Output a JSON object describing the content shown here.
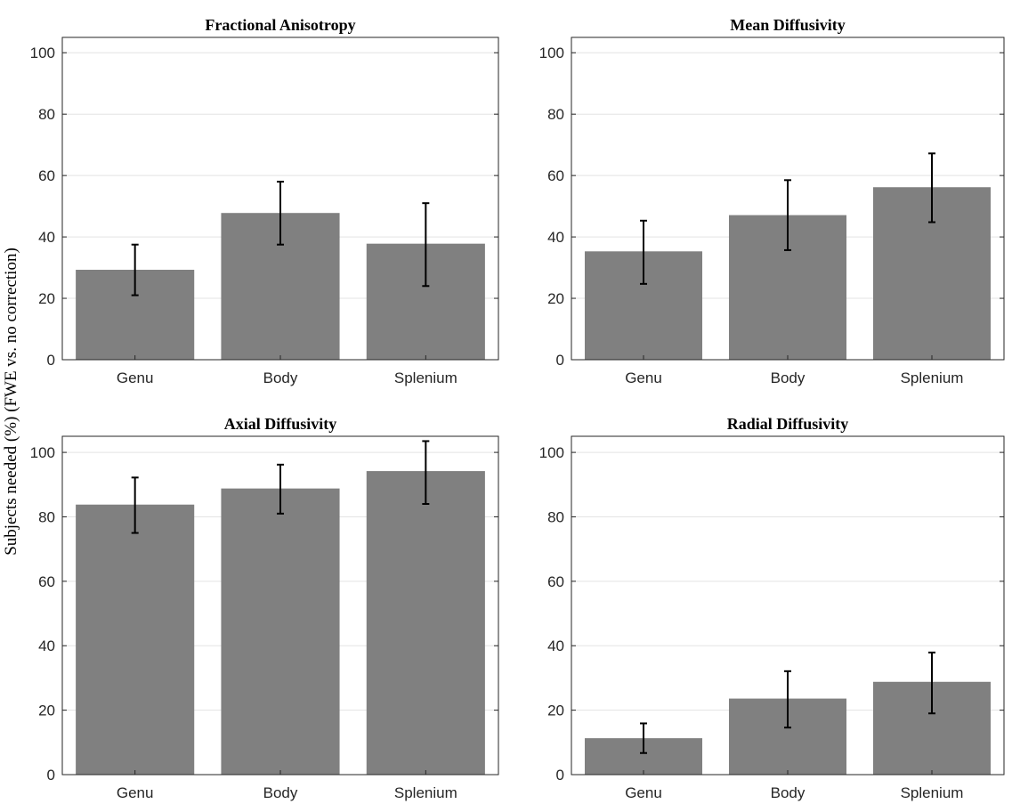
{
  "figure": {
    "ylabel": "Subjects needed (%) (FWE vs. no correction)",
    "bar_color": "#808080",
    "error_bar_color": "#000000",
    "grid_color": "#e3e3e3"
  },
  "chart_data": [
    {
      "type": "bar",
      "title": "Fractional Anisotropy",
      "categories": [
        "Genu",
        "Body",
        "Splenium"
      ],
      "values": [
        29.3,
        47.8,
        37.8
      ],
      "error_low": [
        21.0,
        37.5,
        24.0
      ],
      "error_high": [
        37.5,
        58.0,
        51.0
      ],
      "ylim": [
        0,
        105
      ],
      "yticks": [
        0,
        20,
        40,
        60,
        80,
        100
      ],
      "grid": true
    },
    {
      "type": "bar",
      "title": "Mean Diffusivity",
      "categories": [
        "Genu",
        "Body",
        "Splenium"
      ],
      "values": [
        35.3,
        47.1,
        56.2
      ],
      "error_low": [
        24.7,
        35.7,
        44.8
      ],
      "error_high": [
        45.3,
        58.5,
        67.2
      ],
      "ylim": [
        0,
        105
      ],
      "yticks": [
        0,
        20,
        40,
        60,
        80,
        100
      ],
      "grid": true
    },
    {
      "type": "bar",
      "title": "Axial Diffusivity",
      "categories": [
        "Genu",
        "Body",
        "Splenium"
      ],
      "values": [
        83.8,
        88.8,
        94.2
      ],
      "error_low": [
        75.0,
        81.0,
        84.0
      ],
      "error_high": [
        92.2,
        96.2,
        103.5
      ],
      "ylim": [
        0,
        105
      ],
      "yticks": [
        0,
        20,
        40,
        60,
        80,
        100
      ],
      "grid": true
    },
    {
      "type": "bar",
      "title": "Radial Diffusivity",
      "categories": [
        "Genu",
        "Body",
        "Splenium"
      ],
      "values": [
        11.3,
        23.6,
        28.8
      ],
      "error_low": [
        6.7,
        14.6,
        19.0
      ],
      "error_high": [
        15.9,
        32.1,
        37.9
      ],
      "ylim": [
        0,
        105
      ],
      "yticks": [
        0,
        20,
        40,
        60,
        80,
        100
      ],
      "grid": true
    }
  ]
}
